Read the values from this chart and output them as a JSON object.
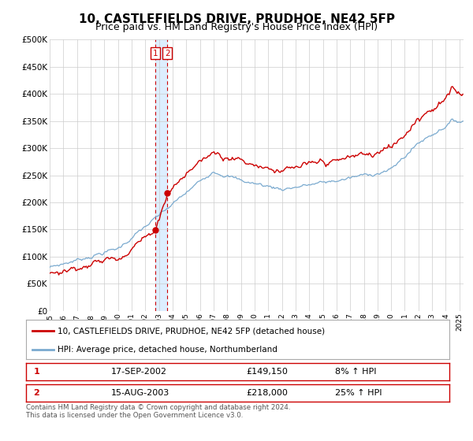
{
  "title": "10, CASTLEFIELDS DRIVE, PRUDHOE, NE42 5FP",
  "subtitle": "Price paid vs. HM Land Registry's House Price Index (HPI)",
  "ylim": [
    0,
    500000
  ],
  "yticks": [
    0,
    50000,
    100000,
    150000,
    200000,
    250000,
    300000,
    350000,
    400000,
    450000,
    500000
  ],
  "ytick_labels": [
    "£0",
    "£50K",
    "£100K",
    "£150K",
    "£200K",
    "£250K",
    "£300K",
    "£350K",
    "£400K",
    "£450K",
    "£500K"
  ],
  "xlim_start": 1995.0,
  "xlim_end": 2025.3,
  "xticks": [
    1995,
    1996,
    1997,
    1998,
    1999,
    2000,
    2001,
    2002,
    2003,
    2004,
    2005,
    2006,
    2007,
    2008,
    2009,
    2010,
    2011,
    2012,
    2013,
    2014,
    2015,
    2016,
    2017,
    2018,
    2019,
    2020,
    2021,
    2022,
    2023,
    2024,
    2025
  ],
  "sale1_date": 2002.72,
  "sale1_price": 149150,
  "sale2_date": 2003.62,
  "sale2_price": 218000,
  "red_line_color": "#cc0000",
  "blue_line_color": "#7aaacf",
  "grid_color": "#cccccc",
  "shading_color": "#ddeeff",
  "legend_red_label": "10, CASTLEFIELDS DRIVE, PRUDHOE, NE42 5FP (detached house)",
  "legend_blue_label": "HPI: Average price, detached house, Northumberland",
  "table_row1": [
    "1",
    "17-SEP-2002",
    "£149,150",
    "8% ↑ HPI"
  ],
  "table_row2": [
    "2",
    "15-AUG-2003",
    "£218,000",
    "25% ↑ HPI"
  ],
  "footnote": "Contains HM Land Registry data © Crown copyright and database right 2024.\nThis data is licensed under the Open Government Licence v3.0.",
  "background_color": "#ffffff",
  "title_fontsize": 11,
  "subtitle_fontsize": 9
}
